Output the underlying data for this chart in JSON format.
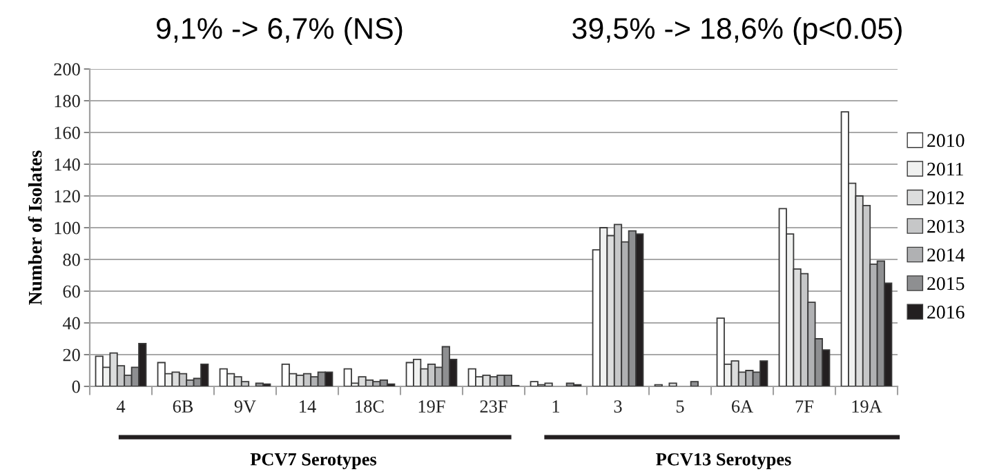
{
  "chart_data": {
    "type": "bar",
    "categories": [
      "4",
      "6B",
      "9V",
      "14",
      "18C",
      "19F",
      "23F",
      "1",
      "3",
      "5",
      "6A",
      "7F",
      "19A"
    ],
    "ylabel": "Number of Isolates",
    "ylim": [
      0,
      200
    ],
    "yticks": [
      0,
      20,
      40,
      60,
      80,
      100,
      120,
      140,
      160,
      180,
      200
    ],
    "grid": "y",
    "legend": "right",
    "series": [
      {
        "name": "2010",
        "color": "#ffffff",
        "values": [
          19,
          15,
          11,
          14,
          11,
          15,
          11,
          3,
          86,
          1,
          43,
          112,
          173
        ]
      },
      {
        "name": "2011",
        "color": "#f0f1f0",
        "values": [
          12,
          8,
          8,
          8,
          2,
          17,
          6,
          1,
          100,
          0,
          14,
          96,
          128
        ]
      },
      {
        "name": "2012",
        "color": "#dcdddd",
        "values": [
          21,
          9,
          6,
          7,
          6,
          11,
          7,
          2,
          95,
          2,
          16,
          74,
          120
        ]
      },
      {
        "name": "2013",
        "color": "#c6c7c8",
        "values": [
          13,
          8,
          3,
          8,
          4,
          14,
          6,
          0,
          102,
          0,
          9,
          71,
          114
        ]
      },
      {
        "name": "2014",
        "color": "#b0b1b3",
        "values": [
          7,
          4,
          0,
          6,
          3,
          12,
          7,
          0,
          91,
          0,
          10,
          53,
          77
        ]
      },
      {
        "name": "2015",
        "color": "#8e8f91",
        "values": [
          12,
          5,
          2,
          9,
          4,
          25,
          7,
          2,
          98,
          3,
          9,
          30,
          79
        ]
      },
      {
        "name": "2016",
        "color": "#231f20",
        "values": [
          27,
          14,
          1.5,
          9,
          1.5,
          17,
          0.5,
          1,
          96,
          0,
          16,
          23,
          65
        ]
      }
    ],
    "annotations": [
      "9,1% -> 6,7% (NS)",
      "39,5% -> 18,6% (p<0.05)",
      "PCV7 Serotypes",
      "PCV13 Serotypes"
    ]
  }
}
